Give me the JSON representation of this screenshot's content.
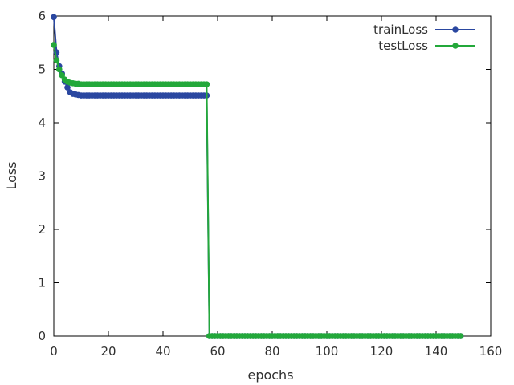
{
  "chart_data": {
    "type": "line",
    "title": "",
    "xlabel": "epochs",
    "ylabel": "Loss",
    "xlim": [
      0,
      160
    ],
    "ylim": [
      0,
      6
    ],
    "xticks": [
      0,
      20,
      40,
      60,
      80,
      100,
      120,
      140,
      160
    ],
    "yticks": [
      0,
      1,
      2,
      3,
      4,
      5,
      6
    ],
    "grid": false,
    "legend_position": "top-right",
    "n_epochs": 150,
    "series": [
      {
        "name": "trainLoss",
        "color": "#2a47a0",
        "marker": "circle",
        "y_head": [
          5.98,
          5.32,
          5.06,
          4.92,
          4.77,
          4.66,
          4.57,
          4.54,
          4.53,
          4.52
        ],
        "plateau_value": 4.51,
        "plateau_end_epoch": 56,
        "tail_value": 0.0
      },
      {
        "name": "testLoss",
        "color": "#23a83a",
        "marker": "circle",
        "y_head": [
          5.46,
          5.17,
          5.0,
          4.89,
          4.81,
          4.77,
          4.75,
          4.74,
          4.73,
          4.73
        ],
        "plateau_value": 4.72,
        "plateau_end_epoch": 56,
        "tail_value": 0.0
      }
    ]
  }
}
